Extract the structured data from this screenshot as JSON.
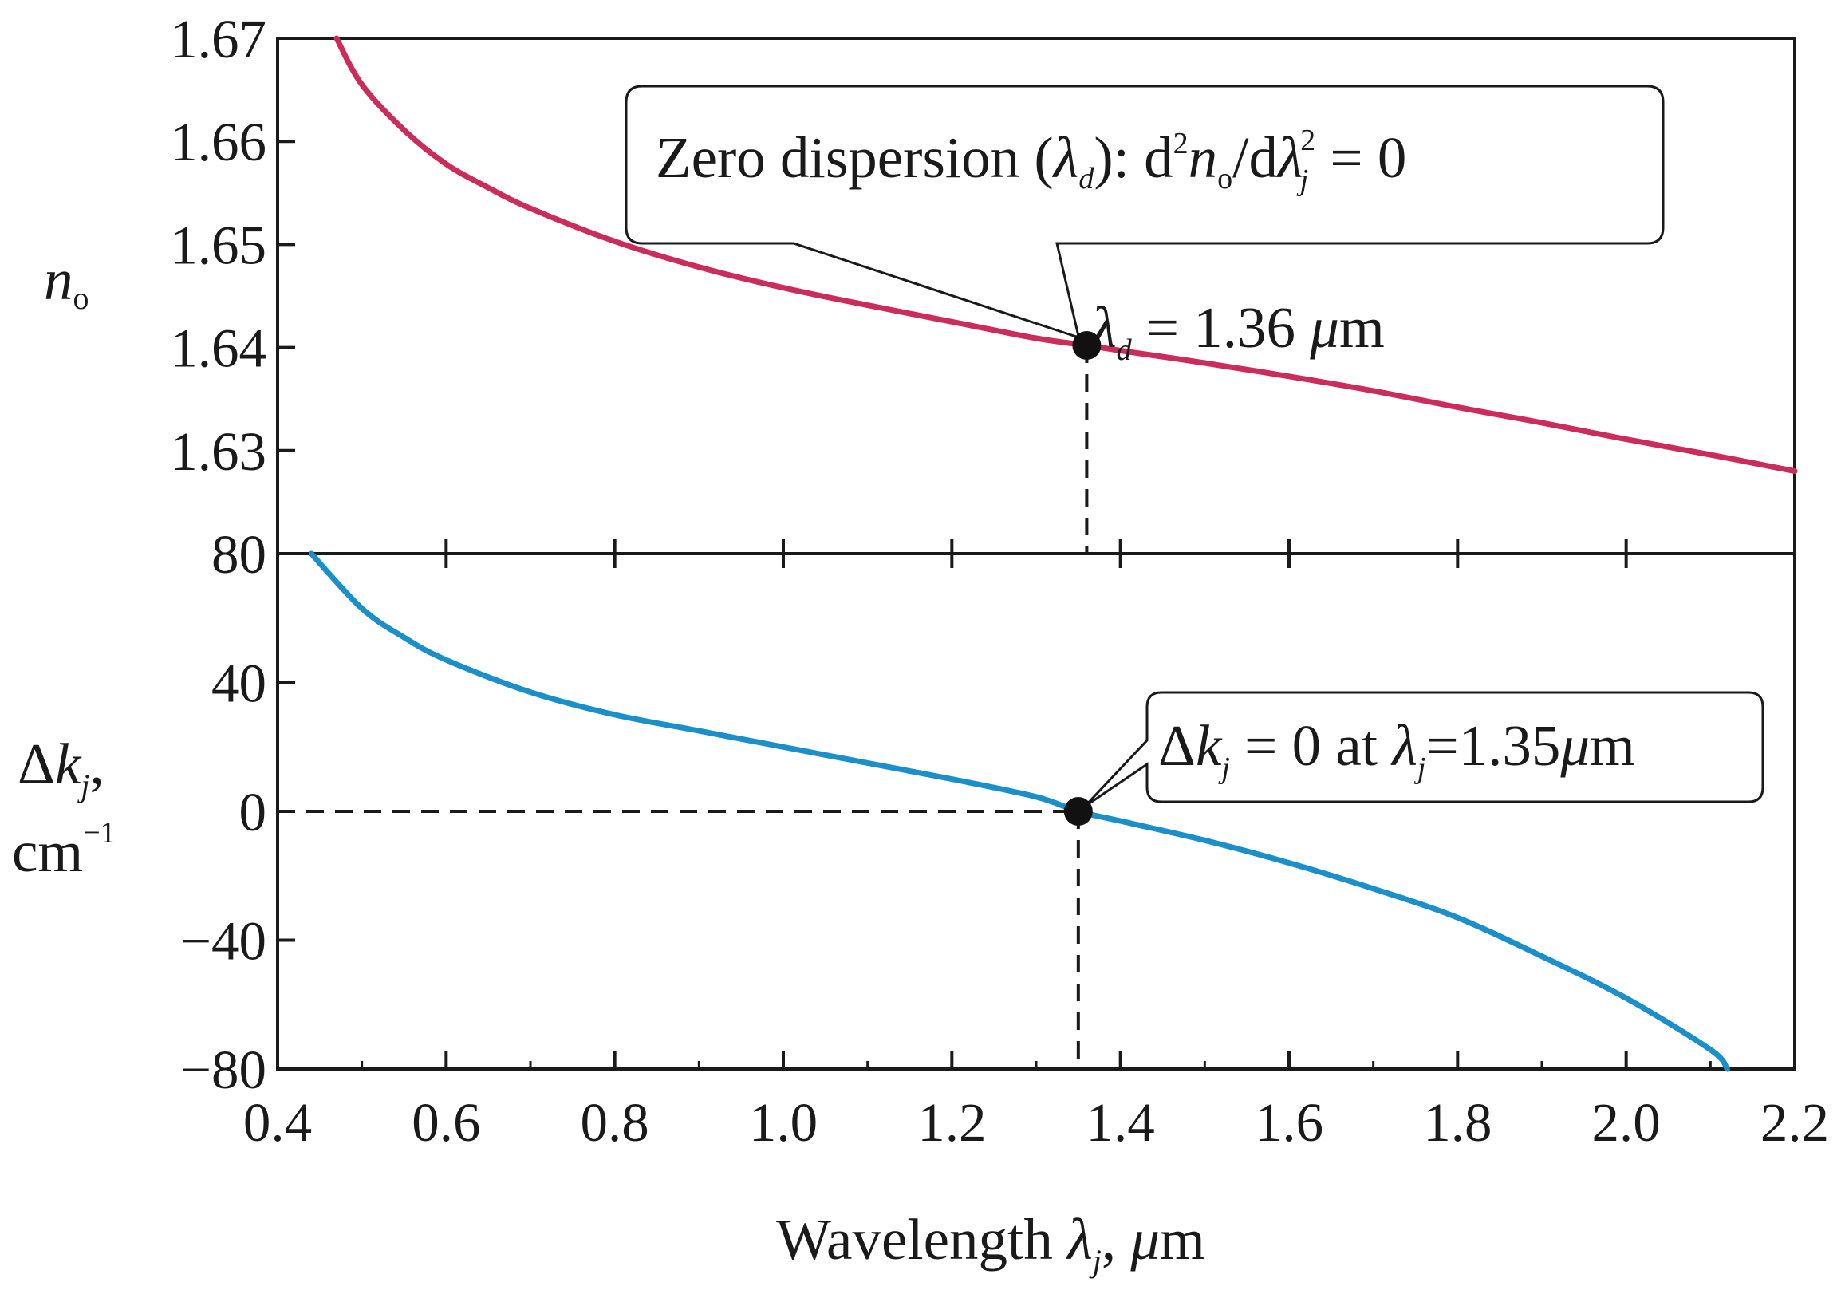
{
  "chart_data": [
    {
      "type": "line",
      "panel": "top",
      "ylabel": {
        "main": "n",
        "sub": "o"
      },
      "xlim": [
        0.4,
        2.2
      ],
      "ylim": [
        1.62,
        1.67
      ],
      "yticks": [
        {
          "v": 1.67,
          "label": "1.67"
        },
        {
          "v": 1.66,
          "label": "1.66"
        },
        {
          "v": 1.65,
          "label": "1.65"
        },
        {
          "v": 1.64,
          "label": "1.64"
        },
        {
          "v": 1.63,
          "label": "1.63"
        }
      ],
      "series": [
        {
          "name": "n_o",
          "color": "#cc2c5a",
          "x": [
            0.47,
            0.5,
            0.55,
            0.6,
            0.65,
            0.7,
            0.8,
            0.9,
            1.0,
            1.1,
            1.2,
            1.3,
            1.36,
            1.4,
            1.5,
            1.6,
            1.7,
            1.8,
            1.9,
            2.0,
            2.1,
            2.2
          ],
          "y": [
            1.67,
            1.6655,
            1.6611,
            1.6578,
            1.6555,
            1.6535,
            1.6503,
            1.6478,
            1.6458,
            1.6441,
            1.6425,
            1.6409,
            1.6402,
            1.6397,
            1.6385,
            1.6372,
            1.6358,
            1.6342,
            1.6327,
            1.6311,
            1.6296,
            1.628
          ]
        }
      ],
      "marker": {
        "x": 1.36,
        "y": 1.6402
      },
      "annotations": {
        "callout": {
          "pre": "Zero dispersion (",
          "lambda": "λ",
          "lambda_sub": "d",
          "mid": "): d",
          "sup2": "2",
          "n": "n",
          "n_sub": "o",
          "slash": "/d",
          "lambda2": "λ",
          "lambda2_sub": "j",
          "lambda2_sup": "2",
          "post": " = 0"
        },
        "point": {
          "lambda": "λ",
          "lambda_sub": "d",
          "text": " = 1.36 ",
          "mu": "μ",
          "unit": "m"
        }
      }
    },
    {
      "type": "line",
      "panel": "bottom",
      "ylabel": {
        "delta": "Δ",
        "k": "k",
        "k_sub": "j",
        "comma": ",",
        "unit": "cm",
        "unit_sup": "−1"
      },
      "xlim": [
        0.4,
        2.2
      ],
      "ylim": [
        -80,
        80
      ],
      "yticks": [
        {
          "v": 80,
          "label": "80"
        },
        {
          "v": 40,
          "label": "40"
        },
        {
          "v": 0,
          "label": "0"
        },
        {
          "v": -40,
          "label": "−40"
        },
        {
          "v": -80,
          "label": "−80"
        }
      ],
      "series": [
        {
          "name": "Δk_j",
          "color": "#1a8fca",
          "x": [
            0.44,
            0.5,
            0.55,
            0.6,
            0.7,
            0.8,
            0.9,
            1.0,
            1.1,
            1.2,
            1.3,
            1.35,
            1.4,
            1.5,
            1.6,
            1.7,
            1.8,
            1.9,
            2.0,
            2.1,
            2.12
          ],
          "y": [
            80,
            63,
            54,
            47,
            37,
            30,
            25,
            20,
            15,
            10,
            4.5,
            0,
            -3,
            -9,
            -16,
            -24,
            -33,
            -45,
            -58,
            -74,
            -80
          ]
        }
      ],
      "marker": {
        "x": 1.35,
        "y": 0
      },
      "annotations": {
        "callout": {
          "delta": "Δ",
          "k": "k",
          "k_sub": "j",
          "text": " = 0 at ",
          "lambda": "λ",
          "lambda_sub": "j",
          "value": "=1.35",
          "mu": "μ",
          "unit": "m"
        }
      }
    }
  ],
  "xaxis": {
    "ticks": [
      {
        "v": 0.4,
        "label": "0.4"
      },
      {
        "v": 0.6,
        "label": "0.6"
      },
      {
        "v": 0.8,
        "label": "0.8"
      },
      {
        "v": 1.0,
        "label": "1.0"
      },
      {
        "v": 1.2,
        "label": "1.2"
      },
      {
        "v": 1.4,
        "label": "1.4"
      },
      {
        "v": 1.6,
        "label": "1.6"
      },
      {
        "v": 1.8,
        "label": "1.8"
      },
      {
        "v": 2.0,
        "label": "2.0"
      },
      {
        "v": 2.2,
        "label": "2.2"
      }
    ],
    "minor_ticks": [
      0.5,
      0.7,
      0.9,
      1.1,
      1.3,
      1.5,
      1.7,
      1.9,
      2.1
    ],
    "label": {
      "text": "Wavelength ",
      "lambda": "λ",
      "lambda_sub": "j",
      "comma": ", ",
      "mu": "μ",
      "unit": "m"
    }
  },
  "colors": {
    "axis": "#1a1a1a",
    "top_curve": "#cc2c5a",
    "bottom_curve": "#1a8fca"
  }
}
